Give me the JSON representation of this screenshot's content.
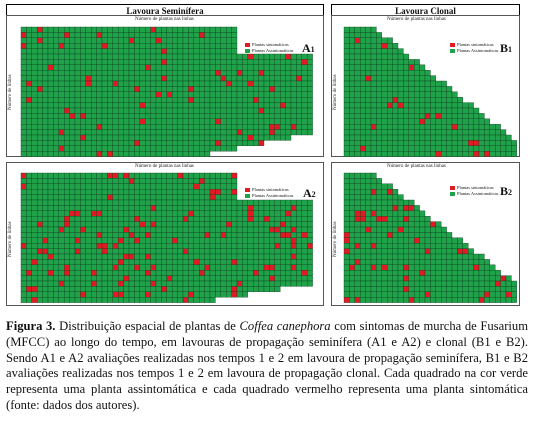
{
  "headers": {
    "left": "Lavoura Seminífera",
    "right": "Lavoura Clonal"
  },
  "axis": {
    "top": "Número de plantas nas linhas",
    "left_seminifera": "Número de linhas",
    "left_clonal": "Número de linhas"
  },
  "legend": {
    "symptomatic": "Plantas sintomáticas",
    "asymptomatic": "Plantas Assintomáticas"
  },
  "colors": {
    "asymptomatic": "#1fa24a",
    "symptomatic": "#e01b24",
    "grid": "#0b3d1b"
  },
  "panels": [
    {
      "id": "A1",
      "label": "A1",
      "base": "A",
      "sub": "1"
    },
    {
      "id": "A2",
      "label": "A2",
      "base": "A",
      "sub": "2"
    },
    {
      "id": "B1",
      "label": "B1",
      "base": "B",
      "sub": "1"
    },
    {
      "id": "B2",
      "label": "B2",
      "base": "B",
      "sub": "2"
    }
  ],
  "caption": {
    "fig": "Figura 3.",
    "part1": " Distribuição espacial de plantas de ",
    "species": "Coffea canephora",
    "part2": " com sintomas de murcha de Fusarium (MFCC) ao longo do tempo, em lavouras de propagação seminífera (A1 e A2) e clonal (B1 e B2). Sendo A1 e A2 avaliações realizadas nos tempos 1 e 2 em lavoura de propagação seminífera, B1 e B2 avaliações realizadas nos tempos 1 e 2 em lavoura de propagação clonal. Cada quadrado na cor verde representa uma planta assintomática e cada quadrado vermelho representa uma planta sintomática (fonte: dados dos autores)."
  }
}
